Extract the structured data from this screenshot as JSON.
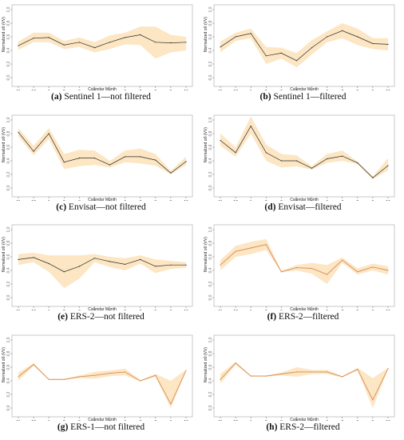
{
  "chart_data": [
    {
      "type": "line",
      "caption": {
        "letter": "(a)",
        "text": "Sentinel 1—not filtered"
      },
      "xlabel": "Calendar Month",
      "ylabel": "Normalized σ0 (VV)",
      "x": [
        "11",
        "12",
        "1",
        "2",
        "3",
        "4",
        "5",
        "6",
        "7",
        "8",
        "9",
        "10"
      ],
      "ylim": [
        0,
        1.0
      ],
      "yticks": [
        "0.0",
        "0.2",
        "0.4",
        "0.6",
        "0.8",
        "1.0"
      ],
      "series": [
        {
          "values": [
            0.47,
            0.58,
            0.59,
            0.48,
            0.52,
            0.44,
            0.52,
            0.59,
            0.63,
            0.52,
            0.51,
            0.52
          ],
          "lower": [
            0.41,
            0.52,
            0.52,
            0.42,
            0.45,
            0.37,
            0.42,
            0.49,
            0.48,
            0.28,
            0.37,
            0.4
          ],
          "upper": [
            0.53,
            0.66,
            0.66,
            0.54,
            0.59,
            0.52,
            0.62,
            0.66,
            0.75,
            0.75,
            0.63,
            0.6
          ]
        }
      ]
    },
    {
      "type": "line",
      "caption": {
        "letter": "(b)",
        "text": "Sentinel 1—filtered"
      },
      "xlabel": "Calendar Month",
      "ylabel": "Normalized σ0 (VV)",
      "x": [
        "11",
        "12",
        "1",
        "2",
        "3",
        "4",
        "5",
        "6",
        "7",
        "8",
        "9",
        "10"
      ],
      "ylim": [
        0,
        1.0
      ],
      "yticks": [
        "0.0",
        "0.2",
        "0.4",
        "0.6",
        "0.8",
        "1.0"
      ],
      "series": [
        {
          "values": [
            0.45,
            0.6,
            0.65,
            0.32,
            0.36,
            0.25,
            0.44,
            0.6,
            0.69,
            0.6,
            0.5,
            0.49
          ],
          "lower": [
            0.37,
            0.54,
            0.58,
            0.2,
            0.28,
            0.15,
            0.34,
            0.52,
            0.58,
            0.48,
            0.42,
            0.4
          ],
          "upper": [
            0.53,
            0.66,
            0.72,
            0.45,
            0.44,
            0.36,
            0.55,
            0.68,
            0.8,
            0.72,
            0.58,
            0.58
          ]
        }
      ]
    },
    {
      "type": "line",
      "caption": {
        "letter": "(c)",
        "text": "Envisat—not filtered"
      },
      "xlabel": "Calendar Month",
      "ylabel": "Normalized σ0 (VV)",
      "x": [
        "11",
        "12",
        "1",
        "2",
        "3",
        "4",
        "5",
        "6",
        "7",
        "8",
        "9",
        "10"
      ],
      "ylim": [
        0,
        1.0
      ],
      "yticks": [
        "0.0",
        "0.2",
        "0.4",
        "0.6",
        "0.8",
        "1.0"
      ],
      "series": [
        {
          "values": [
            0.82,
            0.54,
            0.8,
            0.38,
            0.44,
            0.44,
            0.34,
            0.46,
            0.46,
            0.41,
            0.22,
            0.39
          ],
          "lower": [
            0.76,
            0.48,
            0.72,
            0.28,
            0.32,
            0.34,
            0.3,
            0.38,
            0.36,
            0.33,
            0.2,
            0.34
          ],
          "upper": [
            0.88,
            0.62,
            0.88,
            0.5,
            0.56,
            0.55,
            0.4,
            0.55,
            0.58,
            0.5,
            0.25,
            0.46
          ]
        }
      ]
    },
    {
      "type": "line",
      "caption": {
        "letter": "(d)",
        "text": "Envisat—filtered"
      },
      "xlabel": "Calendar Month",
      "ylabel": "Normalized σ0 (VV)",
      "x": [
        "11",
        "12",
        "1",
        "2",
        "3",
        "4",
        "5",
        "6",
        "7",
        "8",
        "9",
        "10"
      ],
      "ylim": [
        0,
        1.0
      ],
      "yticks": [
        "0.0",
        "0.2",
        "0.4",
        "0.6",
        "0.8",
        "1.0"
      ],
      "series": [
        {
          "values": [
            0.7,
            0.52,
            0.91,
            0.52,
            0.4,
            0.4,
            0.29,
            0.43,
            0.47,
            0.37,
            0.15,
            0.33
          ],
          "lower": [
            0.62,
            0.46,
            0.8,
            0.4,
            0.3,
            0.32,
            0.27,
            0.37,
            0.4,
            0.35,
            0.13,
            0.26
          ],
          "upper": [
            0.8,
            0.6,
            1.05,
            0.64,
            0.5,
            0.48,
            0.32,
            0.5,
            0.55,
            0.39,
            0.17,
            0.44
          ]
        }
      ]
    },
    {
      "type": "line",
      "caption": {
        "letter": "(e)",
        "text": "ERS-2—not filtered"
      },
      "xlabel": "Calendar Month",
      "ylabel": "Normalized σ0 (VV)",
      "x": [
        "11",
        "12",
        "1",
        "2",
        "3",
        "4",
        "5",
        "6",
        "7",
        "8",
        "9",
        "10"
      ],
      "ylim": [
        0,
        1.0
      ],
      "yticks": [
        "0.0",
        "0.2",
        "0.4",
        "0.6",
        "0.8",
        "1.0"
      ],
      "series": [
        {
          "values": [
            0.56,
            0.59,
            0.5,
            0.38,
            0.46,
            0.58,
            0.53,
            0.49,
            0.56,
            0.46,
            0.48,
            0.48
          ],
          "lower": [
            0.48,
            0.52,
            0.38,
            0.14,
            0.28,
            0.52,
            0.45,
            0.4,
            0.5,
            0.36,
            0.42,
            0.44
          ],
          "upper": [
            0.64,
            0.66,
            0.62,
            0.62,
            0.62,
            0.64,
            0.6,
            0.58,
            0.62,
            0.56,
            0.54,
            0.52
          ]
        }
      ]
    },
    {
      "type": "line",
      "caption": {
        "letter": "(f)",
        "text": "ERS-2—filtered"
      },
      "xlabel": "Calendar Month",
      "ylabel": "Normalized σ0 (VV)",
      "x": [
        "11",
        "12",
        "1",
        "2",
        "3",
        "4",
        "5",
        "6",
        "7",
        "8",
        "9",
        "10"
      ],
      "ylim": [
        0,
        1.0
      ],
      "yticks": [
        "0.0",
        "0.2",
        "0.4",
        "0.6",
        "0.8",
        "1.0"
      ],
      "series": [
        {
          "values": [
            0.48,
            0.68,
            0.73,
            0.78,
            0.38,
            0.44,
            0.43,
            0.34,
            0.55,
            0.38,
            0.45,
            0.4
          ],
          "lower": [
            0.4,
            0.6,
            0.64,
            0.7,
            0.37,
            0.4,
            0.35,
            0.2,
            0.51,
            0.34,
            0.4,
            0.34
          ],
          "upper": [
            0.55,
            0.76,
            0.82,
            0.86,
            0.39,
            0.48,
            0.51,
            0.48,
            0.59,
            0.43,
            0.5,
            0.46
          ]
        }
      ]
    },
    {
      "type": "line",
      "caption": {
        "letter": "(g)",
        "text": "ERS-1—not filtered"
      },
      "xlabel": "Calendar Month",
      "ylabel": "Normalized σ0 (VV)",
      "x": [
        "11",
        "12",
        "1",
        "2",
        "3",
        "4",
        "5",
        "6",
        "7",
        "8",
        "9",
        "10"
      ],
      "ylim": [
        0,
        1.0
      ],
      "yticks": [
        "0.0",
        "0.2",
        "0.4",
        "0.6",
        "0.8",
        "1.0"
      ],
      "series": [
        {
          "values": [
            0.46,
            0.64,
            0.42,
            0.42,
            0.46,
            0.48,
            0.51,
            0.53,
            0.4,
            0.48,
            0.06,
            0.55
          ],
          "lower": [
            0.4,
            0.62,
            0.41,
            0.41,
            0.44,
            0.43,
            0.47,
            0.48,
            0.39,
            0.46,
            0.0,
            0.54
          ],
          "upper": [
            0.52,
            0.66,
            0.43,
            0.43,
            0.48,
            0.53,
            0.55,
            0.58,
            0.41,
            0.5,
            0.4,
            0.56
          ]
        }
      ]
    },
    {
      "type": "line",
      "caption": {
        "letter": "(h)",
        "text": "ERS-2—filtered"
      },
      "xlabel": "Calendar Month",
      "ylabel": "Normalized σ0 (VV)",
      "x": [
        "11",
        "12",
        "1",
        "2",
        "3",
        "4",
        "5",
        "6",
        "7",
        "8",
        "9",
        "10"
      ],
      "ylim": [
        0,
        1.0
      ],
      "yticks": [
        "0.0",
        "0.2",
        "0.4",
        "0.6",
        "0.8",
        "1.0"
      ],
      "series": [
        {
          "values": [
            0.42,
            0.66,
            0.47,
            0.47,
            0.5,
            0.53,
            0.53,
            0.53,
            0.46,
            0.57,
            0.12,
            0.58
          ],
          "lower": [
            0.36,
            0.64,
            0.46,
            0.46,
            0.48,
            0.46,
            0.5,
            0.5,
            0.45,
            0.55,
            0.0,
            0.57
          ],
          "upper": [
            0.5,
            0.68,
            0.48,
            0.48,
            0.52,
            0.6,
            0.56,
            0.56,
            0.47,
            0.59,
            0.44,
            0.59
          ]
        }
      ]
    }
  ]
}
